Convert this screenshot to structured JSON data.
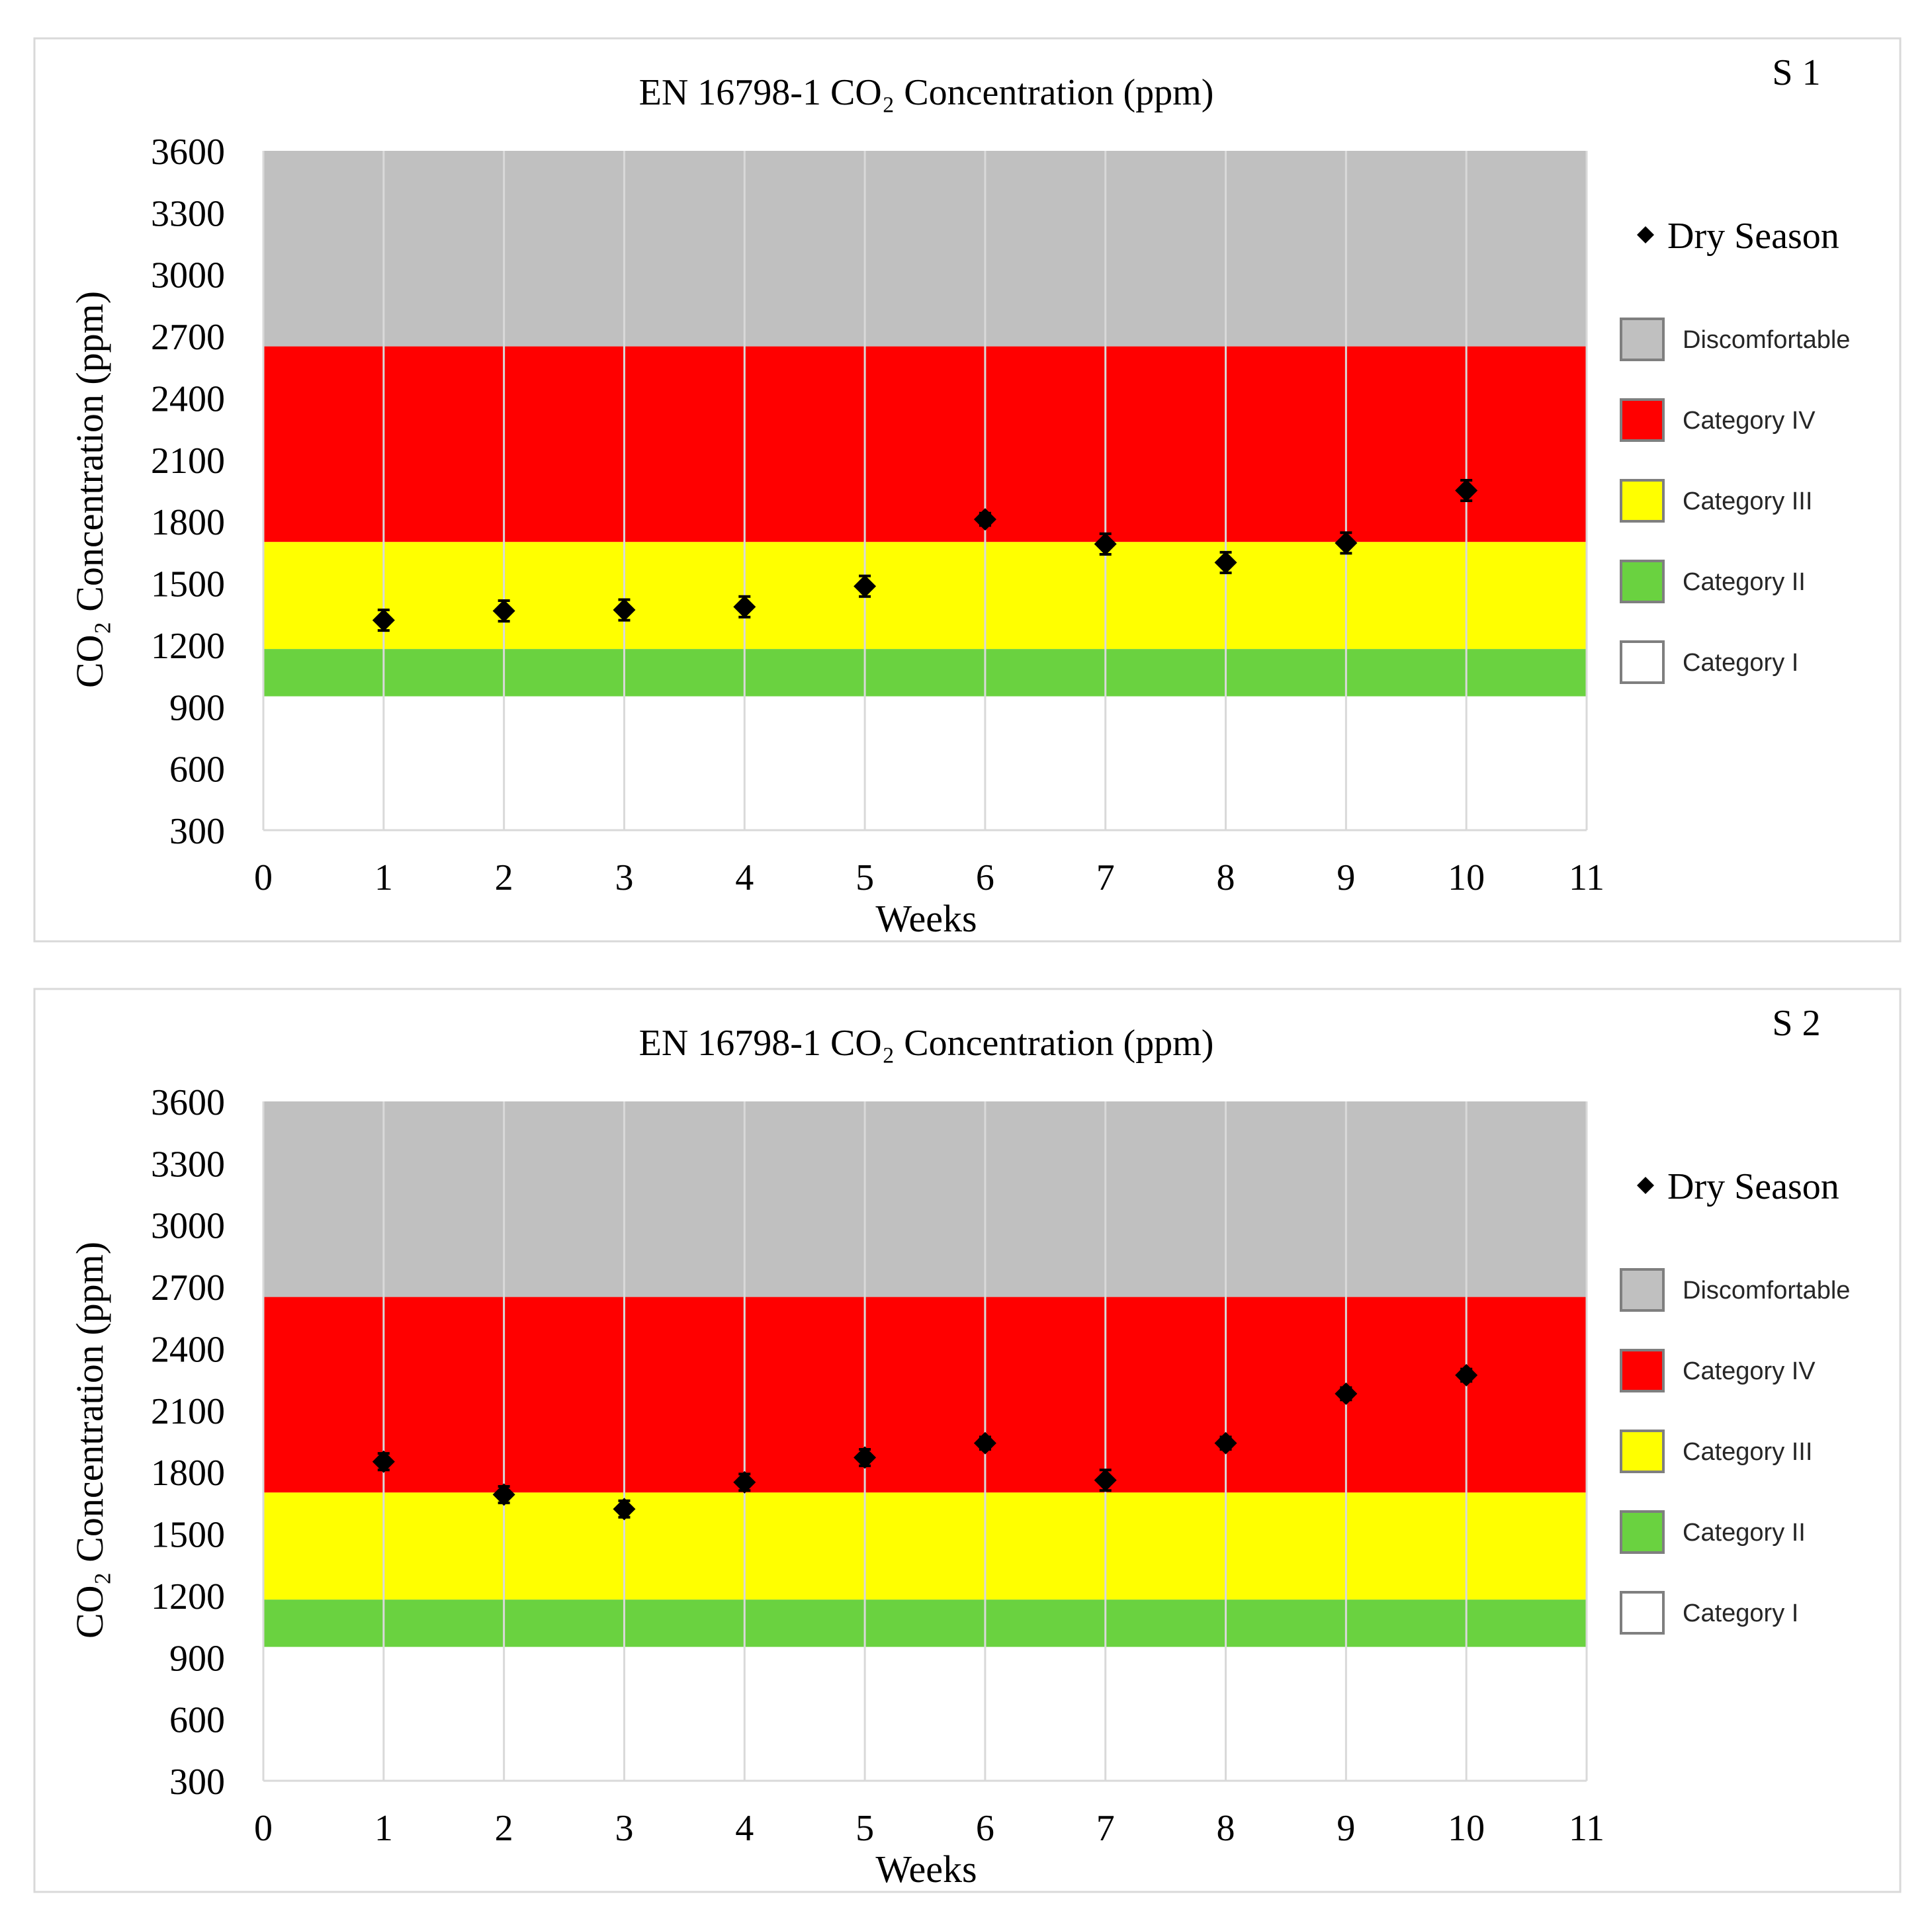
{
  "chart_data": [
    {
      "type": "scatter",
      "panel_label": "S 1",
      "title": "EN 16798-1 CO₂ Concentration (ppm)",
      "xlabel": "Weeks",
      "ylabel": "CO₂ Concentration (ppm)",
      "xlim": [
        0,
        11
      ],
      "ylim": [
        300,
        3600
      ],
      "x_ticks": [
        "0",
        "1",
        "2",
        "3",
        "4",
        "5",
        "6",
        "7",
        "8",
        "9",
        "10",
        "11"
      ],
      "y_ticks": [
        "300",
        "600",
        "900",
        "1200",
        "1500",
        "1800",
        "2100",
        "2400",
        "2700",
        "3000",
        "3300",
        "3600"
      ],
      "grid": "vertical",
      "legend_position": "right",
      "bands": [
        {
          "name": "Discomfortable",
          "from": 2650,
          "to": 3600,
          "color": "#c0c0c0"
        },
        {
          "name": "Category IV",
          "from": 1700,
          "to": 2650,
          "color": "#ff0000"
        },
        {
          "name": "Category III",
          "from": 1180,
          "to": 1700,
          "color": "#ffff00"
        },
        {
          "name": "Category II",
          "from": 950,
          "to": 1180,
          "color": "#6ad240"
        },
        {
          "name": "Category I",
          "from": 300,
          "to": 950,
          "color": "#ffffff"
        }
      ],
      "series": [
        {
          "name": "Dry Season",
          "color": "#000000",
          "x": [
            1,
            2,
            3,
            4,
            5,
            6,
            7,
            8,
            9,
            10
          ],
          "y": [
            1320,
            1365,
            1370,
            1385,
            1485,
            1810,
            1690,
            1600,
            1695,
            1950
          ],
          "error": [
            50,
            50,
            50,
            50,
            50,
            30,
            50,
            50,
            50,
            50
          ]
        }
      ]
    },
    {
      "type": "scatter",
      "panel_label": "S 2",
      "title": "EN 16798-1 CO₂ Concentration (ppm)",
      "xlabel": "Weeks",
      "ylabel": "CO₂ Concentration (ppm)",
      "xlim": [
        0,
        11
      ],
      "ylim": [
        300,
        3600
      ],
      "x_ticks": [
        "0",
        "1",
        "2",
        "3",
        "4",
        "5",
        "6",
        "7",
        "8",
        "9",
        "10",
        "11"
      ],
      "y_ticks": [
        "300",
        "600",
        "900",
        "1200",
        "1500",
        "1800",
        "2100",
        "2400",
        "2700",
        "3000",
        "3300",
        "3600"
      ],
      "grid": "vertical",
      "legend_position": "right",
      "bands": [
        {
          "name": "Discomfortable",
          "from": 2650,
          "to": 3600,
          "color": "#c0c0c0"
        },
        {
          "name": "Category IV",
          "from": 1700,
          "to": 2650,
          "color": "#ff0000"
        },
        {
          "name": "Category III",
          "from": 1180,
          "to": 1700,
          "color": "#ffff00"
        },
        {
          "name": "Category II",
          "from": 950,
          "to": 1180,
          "color": "#6ad240"
        },
        {
          "name": "Category I",
          "from": 300,
          "to": 950,
          "color": "#ffffff"
        }
      ],
      "series": [
        {
          "name": "Dry Season",
          "color": "#000000",
          "x": [
            1,
            2,
            3,
            4,
            5,
            6,
            7,
            8,
            9,
            10
          ],
          "y": [
            1850,
            1690,
            1620,
            1750,
            1870,
            1940,
            1760,
            1940,
            2180,
            2270
          ],
          "error": [
            40,
            40,
            40,
            40,
            40,
            30,
            50,
            30,
            30,
            30
          ]
        }
      ]
    }
  ]
}
